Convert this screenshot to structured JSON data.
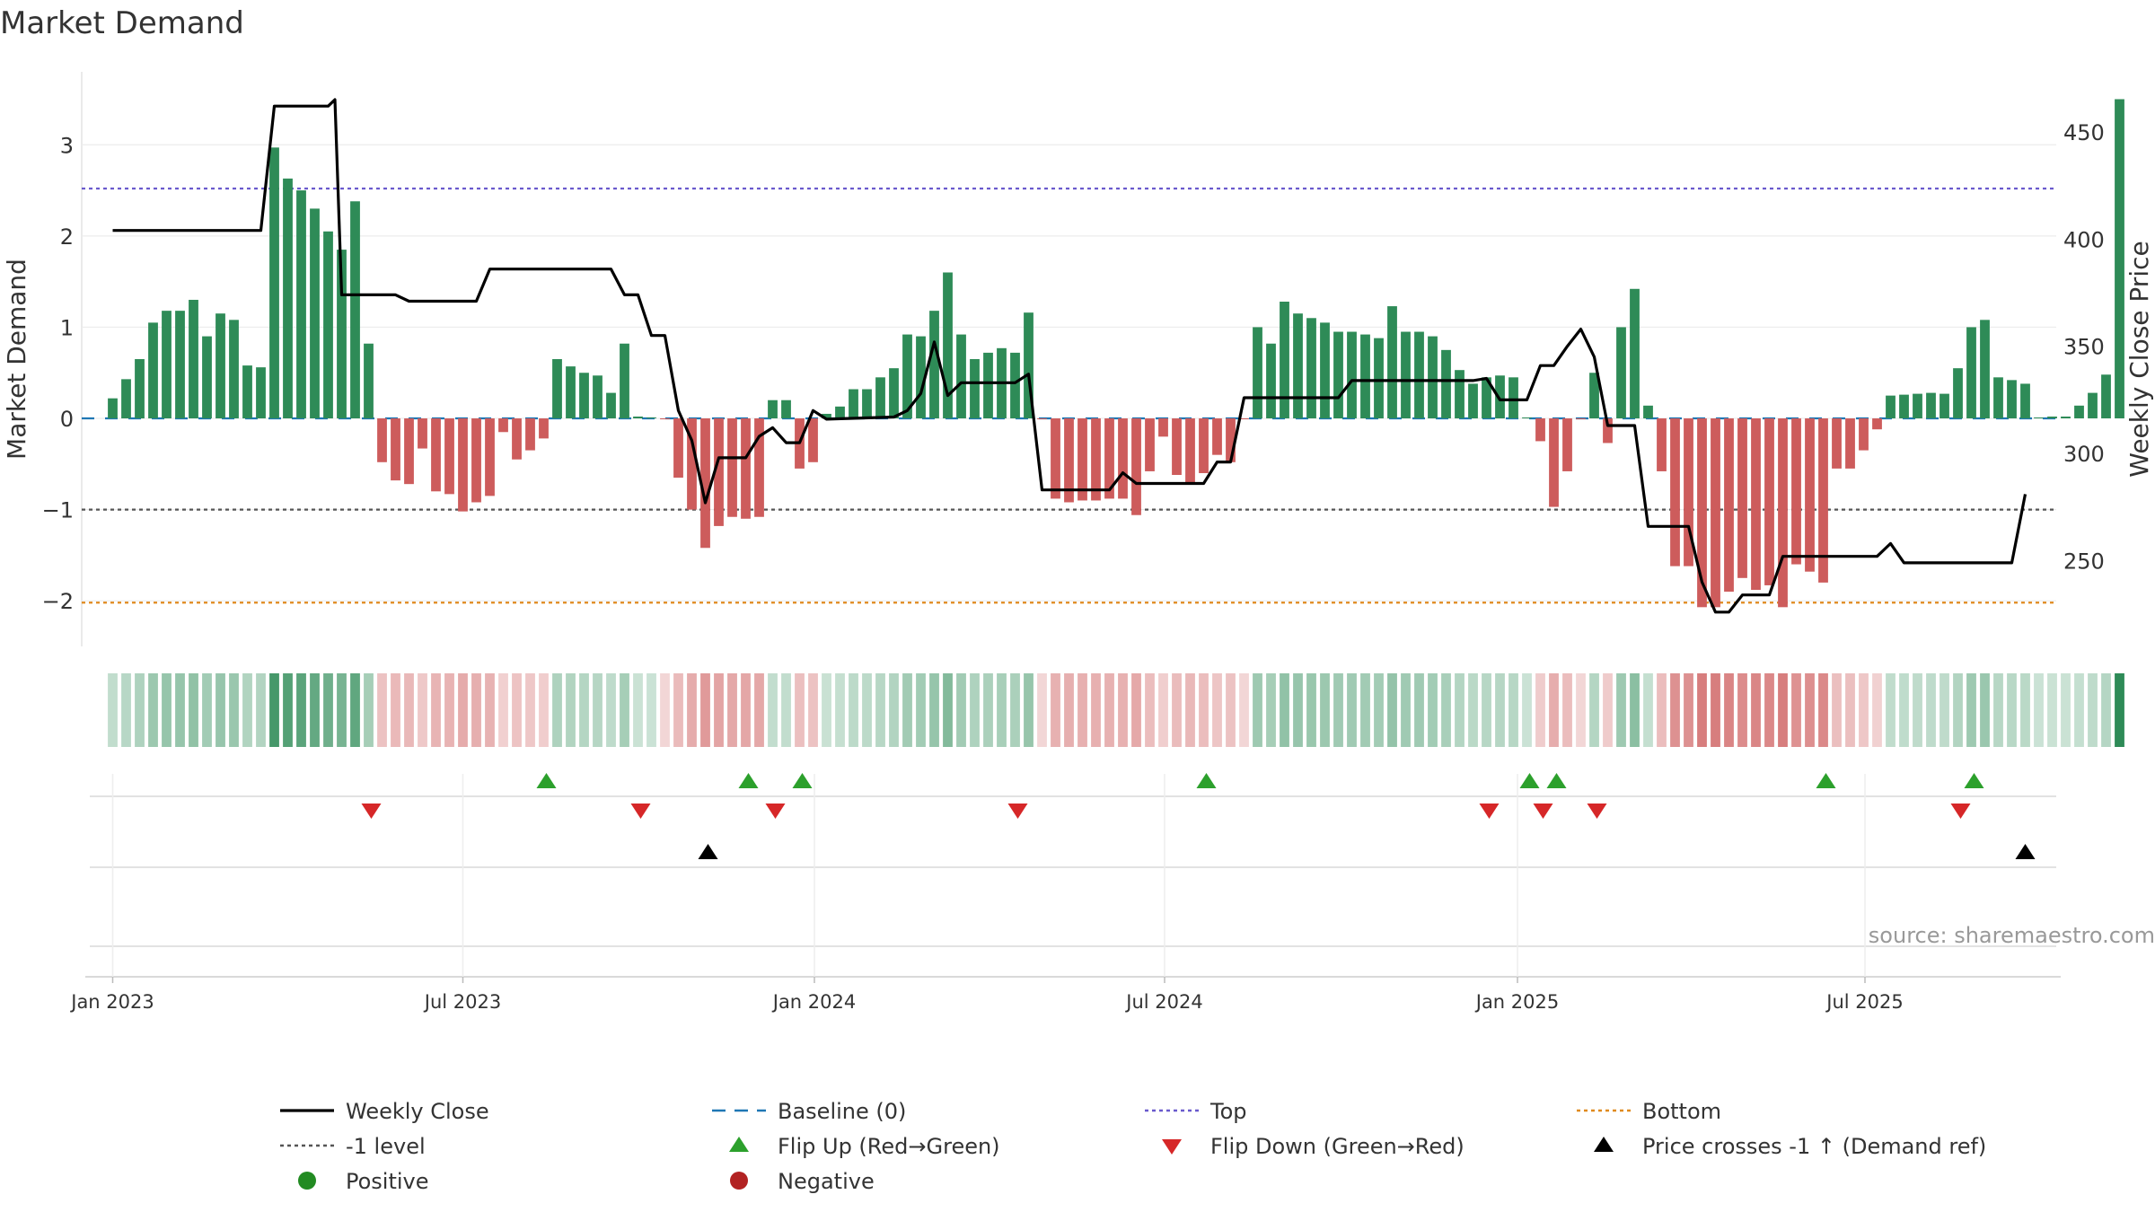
{
  "title": "Market Demand",
  "source": "source: sharemaestro.com",
  "colors": {
    "pos": "#2e8b57",
    "neg": "#cd5c5c",
    "price": "#000000",
    "baseline": "#1f77b4",
    "top": "#6a5acd",
    "bottom": "#e08a1e",
    "minus1": "#555555",
    "flip_up": "#2ca02c",
    "flip_down": "#d62728",
    "cross": "#000000",
    "legend_pos": "#228b22",
    "legend_neg": "#b22222"
  },
  "legend": [
    {
      "key": "weekly_close",
      "label": "Weekly Close",
      "style": "line",
      "color": "#000000"
    },
    {
      "key": "baseline",
      "label": "Baseline (0)",
      "style": "dash",
      "color": "#1f77b4"
    },
    {
      "key": "top",
      "label": "Top",
      "style": "dot",
      "color": "#6a5acd"
    },
    {
      "key": "bottom",
      "label": "Bottom",
      "style": "dot",
      "color": "#e08a1e"
    },
    {
      "key": "minus1",
      "label": "-1 level",
      "style": "dot",
      "color": "#555555"
    },
    {
      "key": "flip_up",
      "label": "Flip Up (Red→Green)",
      "style": "tri-up",
      "color": "#2ca02c"
    },
    {
      "key": "flip_down",
      "label": "Flip Down (Green→Red)",
      "style": "tri-down",
      "color": "#d62728"
    },
    {
      "key": "cross",
      "label": "Price crosses -1 ↑ (Demand ref)",
      "style": "tri-up",
      "color": "#000000"
    },
    {
      "key": "positive",
      "label": "Positive",
      "style": "circle",
      "color": "#228b22"
    },
    {
      "key": "negative",
      "label": "Negative",
      "style": "circle",
      "color": "#b22222"
    }
  ],
  "chart_data": {
    "type": "bar",
    "title": "Market Demand",
    "ylabel": "Market Demand",
    "y2label": "Weekly Close Price",
    "ylim": [
      -2.5,
      3.8
    ],
    "y2lim": [
      210,
      478
    ],
    "yticks": [
      -2,
      -1,
      0,
      1,
      2,
      3
    ],
    "y2ticks": [
      250,
      300,
      350,
      400,
      450
    ],
    "reference_lines": {
      "baseline": 0,
      "top": 2.52,
      "minus1": -1,
      "bottom": -2.02
    },
    "start_week": 0,
    "xlim_weeks": [
      -2.3,
      144.3
    ],
    "x_ticks": [
      {
        "label": "Jan 2023",
        "week": 0
      },
      {
        "label": "Jul 2023",
        "week": 26
      },
      {
        "label": "Jan 2024",
        "week": 52.1
      },
      {
        "label": "Jul 2024",
        "week": 78.1
      },
      {
        "label": "Jan 2025",
        "week": 104.3
      },
      {
        "label": "Jul 2025",
        "week": 130.1
      }
    ],
    "demand": [
      0.22,
      0.43,
      0.65,
      1.05,
      1.18,
      1.18,
      1.3,
      0.9,
      1.15,
      1.08,
      0.58,
      0.56,
      2.97,
      2.63,
      2.5,
      2.3,
      2.05,
      1.85,
      2.38,
      0.82,
      -0.48,
      -0.68,
      -0.72,
      -0.33,
      -0.8,
      -0.83,
      -1.02,
      -0.92,
      -0.85,
      -0.15,
      -0.45,
      -0.35,
      -0.22,
      0.65,
      0.57,
      0.5,
      0.47,
      0.28,
      0.82,
      0.02,
      0.01,
      -0.01,
      -0.65,
      -1.0,
      -1.42,
      -1.18,
      -1.08,
      -1.1,
      -1.08,
      0.2,
      0.2,
      -0.55,
      -0.48,
      0.05,
      0.13,
      0.32,
      0.32,
      0.45,
      0.55,
      0.92,
      0.9,
      1.18,
      1.6,
      0.92,
      0.65,
      0.72,
      0.77,
      0.72,
      1.16,
      -0.01,
      -0.88,
      -0.92,
      -0.9,
      -0.9,
      -0.88,
      -0.88,
      -1.06,
      -0.58,
      -0.2,
      -0.62,
      -0.72,
      -0.6,
      -0.4,
      -0.48,
      -0.01,
      1.0,
      0.82,
      1.28,
      1.15,
      1.1,
      1.05,
      0.95,
      0.95,
      0.92,
      0.88,
      1.23,
      0.95,
      0.95,
      0.9,
      0.75,
      0.53,
      0.38,
      0.45,
      0.47,
      0.45,
      0.01,
      -0.25,
      -0.97,
      -0.58,
      -0.01,
      0.5,
      -0.27,
      1.0,
      1.42,
      0.14,
      -0.58,
      -1.62,
      -1.62,
      -2.07,
      -2.07,
      -1.9,
      -1.75,
      -1.88,
      -1.83,
      -2.07,
      -1.6,
      -1.68,
      -1.8,
      -0.55,
      -0.55,
      -0.35,
      -0.12,
      0.25,
      0.26,
      0.27,
      0.28,
      0.27,
      0.55,
      1.0,
      1.08,
      0.45,
      0.42,
      0.38,
      0.01,
      0.02,
      0.02,
      0.14,
      0.28,
      0.48,
      3.5
    ],
    "price": [
      {
        "w": 0,
        "p": 404
      },
      {
        "w": 11,
        "p": 404
      },
      {
        "w": 12,
        "p": 462
      },
      {
        "w": 16,
        "p": 462
      },
      {
        "w": 16.5,
        "p": 465
      },
      {
        "w": 17,
        "p": 374
      },
      {
        "w": 21,
        "p": 374
      },
      {
        "w": 22,
        "p": 371
      },
      {
        "w": 27,
        "p": 371
      },
      {
        "w": 28,
        "p": 386
      },
      {
        "w": 37,
        "p": 386
      },
      {
        "w": 38,
        "p": 374
      },
      {
        "w": 39,
        "p": 374
      },
      {
        "w": 40,
        "p": 355
      },
      {
        "w": 41,
        "p": 355
      },
      {
        "w": 42,
        "p": 320
      },
      {
        "w": 43,
        "p": 306
      },
      {
        "w": 44,
        "p": 277
      },
      {
        "w": 45,
        "p": 298
      },
      {
        "w": 47,
        "p": 298
      },
      {
        "w": 48,
        "p": 308
      },
      {
        "w": 49,
        "p": 312
      },
      {
        "w": 50,
        "p": 305
      },
      {
        "w": 51,
        "p": 305
      },
      {
        "w": 52,
        "p": 320
      },
      {
        "w": 53,
        "p": 316
      },
      {
        "w": 58,
        "p": 317
      },
      {
        "w": 59,
        "p": 320
      },
      {
        "w": 60,
        "p": 328
      },
      {
        "w": 61,
        "p": 352
      },
      {
        "w": 62,
        "p": 327
      },
      {
        "w": 63,
        "p": 333
      },
      {
        "w": 67,
        "p": 333
      },
      {
        "w": 68,
        "p": 337
      },
      {
        "w": 69,
        "p": 283
      },
      {
        "w": 74,
        "p": 283
      },
      {
        "w": 75,
        "p": 291
      },
      {
        "w": 76,
        "p": 286
      },
      {
        "w": 81,
        "p": 286
      },
      {
        "w": 82,
        "p": 296
      },
      {
        "w": 83,
        "p": 296
      },
      {
        "w": 84,
        "p": 326
      },
      {
        "w": 91,
        "p": 326
      },
      {
        "w": 92,
        "p": 334
      },
      {
        "w": 101,
        "p": 334
      },
      {
        "w": 102,
        "p": 335
      },
      {
        "w": 103,
        "p": 325
      },
      {
        "w": 105,
        "p": 325
      },
      {
        "w": 106,
        "p": 341
      },
      {
        "w": 107,
        "p": 341
      },
      {
        "w": 108,
        "p": 350
      },
      {
        "w": 109,
        "p": 358
      },
      {
        "w": 110,
        "p": 345
      },
      {
        "w": 111,
        "p": 313
      },
      {
        "w": 113,
        "p": 313
      },
      {
        "w": 114,
        "p": 266
      },
      {
        "w": 117,
        "p": 266
      },
      {
        "w": 118,
        "p": 240
      },
      {
        "w": 119,
        "p": 226
      },
      {
        "w": 120,
        "p": 226
      },
      {
        "w": 121,
        "p": 234
      },
      {
        "w": 123,
        "p": 234
      },
      {
        "w": 124,
        "p": 252
      },
      {
        "w": 131,
        "p": 252
      },
      {
        "w": 132,
        "p": 258
      },
      {
        "w": 133,
        "p": 249
      },
      {
        "w": 141,
        "p": 249
      },
      {
        "w": 142,
        "p": 281
      }
    ],
    "flip_up_weeks": [
      32.2,
      47.2,
      51.2,
      81.2,
      105.2,
      107.2,
      127.2,
      138.2
    ],
    "flip_down_weeks": [
      19.2,
      39.2,
      49.2,
      67.2,
      102.2,
      106.2,
      110.2,
      137.2
    ],
    "cross_weeks": [
      44.2,
      142
    ]
  }
}
